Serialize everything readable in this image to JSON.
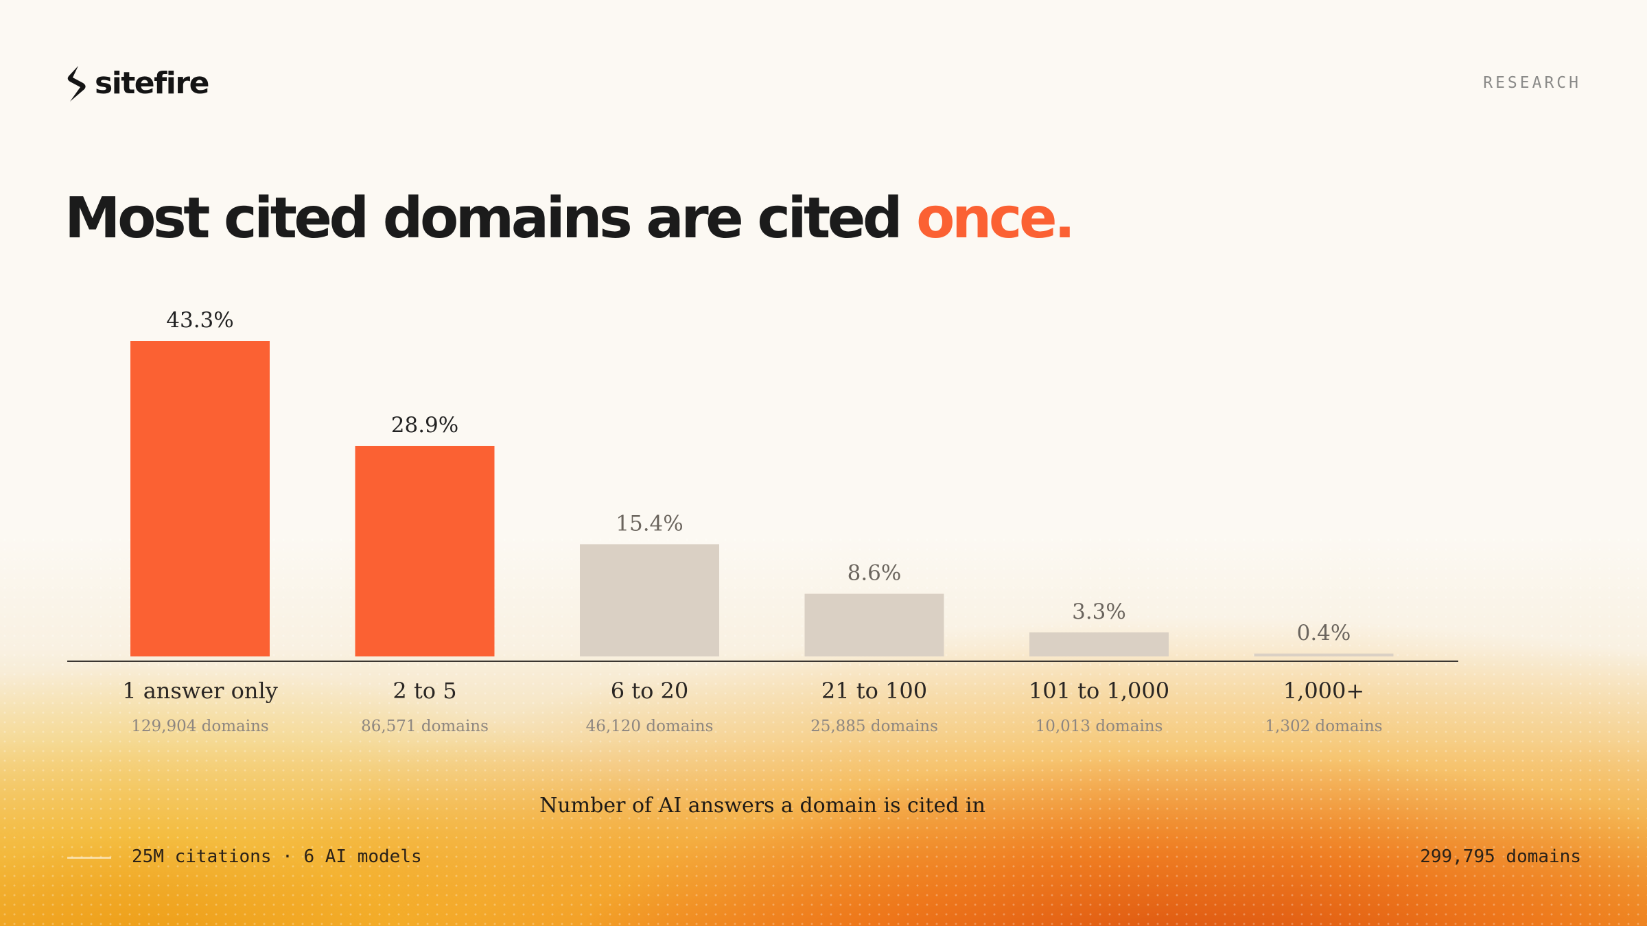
{
  "brand": {
    "name": "sitefire",
    "logo_icon": "s-bolt-logo-icon"
  },
  "tag": "RESEARCH",
  "headline": {
    "main": "Most cited domains are cited ",
    "accent": "once."
  },
  "colors": {
    "accent": "#fb6133",
    "muted_bar": "#dad0c4",
    "text_dark": "#1b1b1b",
    "background": "#fcf9f3"
  },
  "chart_data": {
    "type": "bar",
    "categories": [
      "1 answer only",
      "2 to 5",
      "6 to 20",
      "21 to 100",
      "101 to 1,000",
      "1,000+"
    ],
    "values": [
      43.3,
      28.9,
      15.4,
      8.6,
      3.3,
      0.4
    ],
    "value_labels": [
      "43.3%",
      "28.9%",
      "15.4%",
      "8.6%",
      "3.3%",
      "0.4%"
    ],
    "sublabels": [
      "129,904 domains",
      "86,571 domains",
      "46,120 domains",
      "25,885 domains",
      "10,013 domains",
      "1,302 domains"
    ],
    "highlighted": [
      true,
      true,
      false,
      false,
      false,
      false
    ],
    "xlabel": "Number of AI answers a domain is cited in",
    "ylabel": "",
    "ylim": [
      0,
      43.3
    ],
    "grid": false
  },
  "footer": {
    "left": "25M citations · 6 AI models",
    "right": "299,795 domains"
  }
}
